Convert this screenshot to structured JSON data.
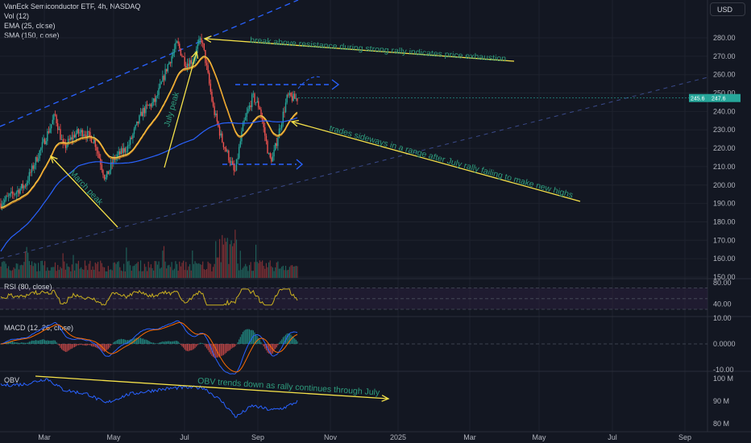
{
  "header": {
    "title": "VanEck Semiconductor ETF, 4h, NASDAQ",
    "vol": "Vol (12)",
    "ema": "EMA (25, close)",
    "sma": "SMA (150, close)",
    "currency": "USD"
  },
  "colors": {
    "background": "#131722",
    "up_candle": "#26a69a",
    "down_candle": "#ef5350",
    "ema": "#f7c948",
    "sma": "#2962ff",
    "annotation_arrow": "#f7e34a",
    "annotation_text": "#2e9c7d",
    "dashed_line": "#2962ff",
    "macd": "#2962ff",
    "signal": "#ff6d00",
    "obv": "#2962ff",
    "rsi": "#c9b01f"
  },
  "chart_data": {
    "type": "candlestick",
    "price_panel": {
      "ylim": [
        150,
        290
      ],
      "ticks": [
        "280.00",
        "270.00",
        "260.00",
        "250.00",
        "240.00",
        "230.00",
        "220.00",
        "210.00",
        "200.00",
        "190.00",
        "180.00",
        "170.00",
        "160.00",
        "150.00"
      ],
      "price_labels": [
        "245.6",
        "247.6"
      ],
      "waypoints": [
        [
          "2024-01-22",
          190
        ],
        [
          "2024-02-12",
          200
        ],
        [
          "2024-02-28",
          224
        ],
        [
          "2024-03-08",
          238
        ],
        [
          "2024-03-15",
          220
        ],
        [
          "2024-03-25",
          228
        ],
        [
          "2024-04-01",
          229
        ],
        [
          "2024-04-10",
          224
        ],
        [
          "2024-04-19",
          203
        ],
        [
          "2024-04-26",
          214
        ],
        [
          "2024-05-08",
          221
        ],
        [
          "2024-05-20",
          240
        ],
        [
          "2024-05-31",
          246
        ],
        [
          "2024-06-10",
          265
        ],
        [
          "2024-06-18",
          277
        ],
        [
          "2024-06-25",
          266
        ],
        [
          "2024-07-01",
          268
        ],
        [
          "2024-07-08",
          280
        ],
        [
          "2024-07-11",
          270
        ],
        [
          "2024-07-18",
          242
        ],
        [
          "2024-07-25",
          225
        ],
        [
          "2024-08-02",
          212
        ],
        [
          "2024-08-05",
          206
        ],
        [
          "2024-08-12",
          232
        ],
        [
          "2024-08-20",
          248
        ],
        [
          "2024-08-26",
          242
        ],
        [
          "2024-09-03",
          214
        ],
        [
          "2024-09-06",
          215
        ],
        [
          "2024-09-12",
          232
        ],
        [
          "2024-09-18",
          248
        ],
        [
          "2024-09-24",
          247
        ],
        [
          "2024-09-27",
          247
        ]
      ]
    },
    "rsi_panel": {
      "ylim": [
        20,
        90
      ],
      "ticks": [
        "80.00",
        "40.00"
      ],
      "label": "RSI (80, close)",
      "upper": 70,
      "lower": 30
    },
    "macd_panel": {
      "ylim": [
        -12,
        12
      ],
      "ticks": [
        "10.00",
        "0.0000",
        "-10.00"
      ],
      "label": "MACD (12, 26, close)"
    },
    "obv_panel": {
      "ylim": [
        75,
        103
      ],
      "ticks": [
        "100 M",
        "90 M",
        "80 M"
      ],
      "label": "OBV",
      "waypoints": [
        [
          "2024-01-22",
          97
        ],
        [
          "2024-02-12",
          97.5
        ],
        [
          "2024-03-01",
          100
        ],
        [
          "2024-03-15",
          95
        ],
        [
          "2024-04-05",
          93
        ],
        [
          "2024-04-19",
          89
        ],
        [
          "2024-05-08",
          93
        ],
        [
          "2024-06-01",
          95
        ],
        [
          "2024-06-20",
          96
        ],
        [
          "2024-07-10",
          96
        ],
        [
          "2024-07-25",
          90
        ],
        [
          "2024-08-06",
          83
        ],
        [
          "2024-08-20",
          88
        ],
        [
          "2024-09-05",
          86
        ],
        [
          "2024-09-15",
          87
        ],
        [
          "2024-09-27",
          90
        ]
      ]
    },
    "x_ticks": [
      "Mar",
      "May",
      "Jul",
      "Sep",
      "Nov",
      "2025",
      "Mar",
      "May",
      "Jul",
      "Sep"
    ],
    "annotations": [
      "break above resistance during strong rally indicates price exhaustion",
      "trades sideways in a range after July rally failing to make new highs",
      "March peak",
      "July peak",
      "OBV trends down as rally continues through July"
    ]
  }
}
